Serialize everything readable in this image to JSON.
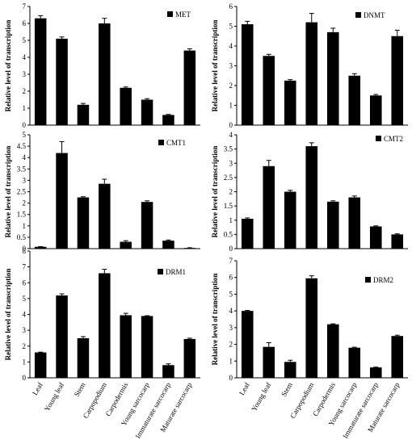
{
  "categories": [
    "Leaf",
    "Young leaf",
    "Stem",
    "Carpopodium",
    "Carpodermis",
    "Young sarcocarp",
    "Immaturate sarcocarp",
    "Maturate sarcocarp"
  ],
  "chart_data": [
    {
      "type": "bar",
      "legend": "MET",
      "ylabel": "Relative level of transcription",
      "ylim": [
        0,
        7
      ],
      "ticks": [
        0,
        1,
        2,
        3,
        4,
        5,
        6,
        7
      ],
      "values": [
        6.3,
        5.1,
        1.2,
        6.0,
        2.2,
        1.5,
        0.6,
        4.4
      ],
      "errors": [
        0.15,
        0.1,
        0.08,
        0.3,
        0.05,
        0.06,
        0.03,
        0.1
      ]
    },
    {
      "type": "bar",
      "legend": "DNMT",
      "ylabel": "Relative level of transcription",
      "ylim": [
        0,
        6
      ],
      "ticks": [
        0,
        1,
        2,
        3,
        4,
        5,
        6
      ],
      "values": [
        5.1,
        3.5,
        2.25,
        5.2,
        4.7,
        2.5,
        1.5,
        4.5
      ],
      "errors": [
        0.15,
        0.08,
        0.05,
        0.45,
        0.2,
        0.1,
        0.05,
        0.3
      ]
    },
    {
      "type": "bar",
      "legend": "CMT1",
      "ylabel": "Relative level of transcription",
      "ylim": [
        0,
        5
      ],
      "ticks": [
        0,
        0.5,
        1,
        1.5,
        2,
        2.5,
        3,
        3.5,
        4,
        4.5,
        5
      ],
      "values": [
        0.08,
        4.2,
        2.25,
        2.85,
        0.3,
        2.05,
        0.35,
        0.03
      ],
      "errors": [
        0.01,
        0.5,
        0.03,
        0.2,
        0.05,
        0.05,
        0.03,
        0.01
      ]
    },
    {
      "type": "bar",
      "legend": "CMT2",
      "ylabel": "Relative level of transcription",
      "ylim": [
        0,
        4
      ],
      "ticks": [
        0,
        0.5,
        1,
        1.5,
        2,
        2.5,
        3,
        3.5,
        4
      ],
      "values": [
        1.05,
        2.9,
        2.0,
        3.6,
        1.65,
        1.8,
        0.78,
        0.5
      ],
      "errors": [
        0.03,
        0.2,
        0.05,
        0.12,
        0.03,
        0.05,
        0.02,
        0.02
      ]
    },
    {
      "type": "bar",
      "legend": "DRM1",
      "ylabel": "Relative level of transcription",
      "ylim": [
        0,
        8
      ],
      "ticks": [
        0,
        1,
        2,
        3,
        4,
        5,
        6,
        7,
        8
      ],
      "values": [
        1.6,
        5.2,
        2.5,
        6.6,
        3.95,
        3.9,
        0.8,
        2.45
      ],
      "errors": [
        0.02,
        0.1,
        0.1,
        0.25,
        0.12,
        0.02,
        0.08,
        0.05
      ]
    },
    {
      "type": "bar",
      "legend": "DRM2",
      "ylabel": "Relative level of transcription",
      "ylim": [
        0,
        7
      ],
      "ticks": [
        0,
        1,
        2,
        3,
        4,
        5,
        6,
        7
      ],
      "values": [
        4.0,
        1.85,
        0.95,
        5.95,
        3.2,
        1.8,
        0.62,
        2.5
      ],
      "errors": [
        0.03,
        0.25,
        0.1,
        0.15,
        0.03,
        0.03,
        0.02,
        0.05
      ]
    }
  ]
}
